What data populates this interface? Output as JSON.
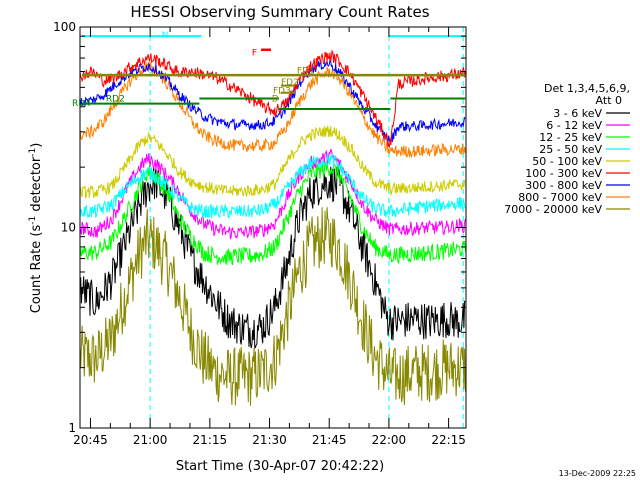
{
  "chart_data": {
    "type": "line",
    "title": "HESSI Observing Summary Count Rates",
    "xlabel": "Start Time (30-Apr-07 20:42:22)",
    "ylabel_main": "Count Rate (s",
    "ylabel_sup1": "-1",
    "ylabel_mid": " detector",
    "ylabel_sup2": "-1",
    "ylabel_end": ")",
    "yscale": "log",
    "ylim": [
      1,
      100
    ],
    "y_ticks": [
      {
        "value": 1,
        "label": "1"
      },
      {
        "value": 10,
        "label": "10"
      },
      {
        "value": 100,
        "label": "100"
      }
    ],
    "xlim_minutes": [
      0,
      97
    ],
    "x_ticks": [
      {
        "minutes": 2.63,
        "label": "20:45"
      },
      {
        "minutes": 17.63,
        "label": "21:00"
      },
      {
        "minutes": 32.63,
        "label": "21:15"
      },
      {
        "minutes": 47.63,
        "label": "21:30"
      },
      {
        "minutes": 62.63,
        "label": "21:45"
      },
      {
        "minutes": 77.63,
        "label": "22:00"
      },
      {
        "minutes": 92.63,
        "label": "22:15"
      }
    ],
    "legend": {
      "header1": "Det 1,3,4,5,6,9,",
      "header2": "Att 0",
      "placement": "right"
    },
    "series": [
      {
        "name": "3 - 6 keV",
        "color": "#000000",
        "x": [
          0,
          4,
          8,
          12,
          15,
          17,
          19,
          22,
          25,
          28,
          31,
          34,
          37,
          40,
          43,
          46,
          49,
          52,
          55,
          58,
          61,
          63,
          65,
          68,
          71,
          74,
          77,
          78,
          80,
          84,
          88,
          92,
          95,
          97
        ],
        "y": [
          5,
          4.2,
          5.5,
          9,
          13,
          16,
          17,
          14,
          10,
          7,
          5.5,
          4.3,
          3.5,
          3.2,
          3.1,
          3.2,
          4,
          6.5,
          11,
          15,
          16.5,
          17,
          16,
          12,
          8,
          5.5,
          3.6,
          3.4,
          3.4,
          3.5,
          3.4,
          3.5,
          3.4,
          3.5
        ]
      },
      {
        "name": "6 - 12 keV",
        "color": "#ff00ff",
        "x": [
          0,
          4,
          8,
          12,
          15,
          17,
          19,
          22,
          25,
          28,
          31,
          34,
          37,
          40,
          43,
          46,
          49,
          52,
          55,
          58,
          61,
          63,
          65,
          68,
          71,
          74,
          77,
          78,
          80,
          84,
          88,
          92,
          95,
          97
        ],
        "y": [
          10,
          9.5,
          11,
          16,
          20,
          22,
          21,
          18,
          15,
          12,
          10.5,
          9.8,
          9.5,
          9.4,
          9.5,
          9.7,
          10.5,
          14,
          18,
          21,
          22,
          23,
          21,
          17,
          13,
          11,
          10,
          9.8,
          9.8,
          9.9,
          10,
          10,
          10.2,
          10.2
        ]
      },
      {
        "name": "12 - 25 keV",
        "color": "#00ff00",
        "x": [
          0,
          4,
          8,
          12,
          15,
          17,
          19,
          22,
          25,
          28,
          31,
          34,
          37,
          40,
          43,
          46,
          49,
          52,
          55,
          58,
          61,
          63,
          65,
          68,
          71,
          74,
          77,
          78,
          80,
          84,
          88,
          92,
          95,
          97
        ],
        "y": [
          7.5,
          7.5,
          8.5,
          12,
          16,
          19,
          18,
          15,
          11,
          9,
          7.5,
          7.2,
          7.1,
          7.2,
          7.2,
          7.4,
          8,
          11,
          15,
          18.5,
          19.5,
          20,
          18.5,
          14,
          10,
          8,
          7.4,
          7.3,
          7.3,
          7.4,
          7.5,
          7.6,
          7.8,
          7.8
        ]
      },
      {
        "name": "25 - 50 keV",
        "color": "#00ffff",
        "x": [
          0,
          4,
          8,
          12,
          15,
          17,
          19,
          22,
          25,
          28,
          31,
          34,
          37,
          40,
          43,
          46,
          49,
          52,
          55,
          58,
          61,
          63,
          65,
          68,
          71,
          74,
          77,
          78,
          80,
          84,
          88,
          92,
          95,
          97
        ],
        "y": [
          12,
          12,
          13,
          16,
          18,
          19,
          18,
          16,
          14,
          12.5,
          12,
          12,
          12,
          12,
          12,
          12.2,
          13,
          15.5,
          18.5,
          21,
          21.5,
          22,
          20.5,
          17,
          14,
          12.5,
          12,
          12,
          12.2,
          12.5,
          12.8,
          13,
          13.2,
          13.2
        ]
      },
      {
        "name": "50 - 100 keV",
        "color": "#cccc00",
        "x": [
          0,
          4,
          8,
          12,
          15,
          17,
          19,
          22,
          25,
          28,
          31,
          34,
          37,
          40,
          43,
          46,
          49,
          52,
          55,
          58,
          61,
          63,
          65,
          68,
          71,
          74,
          77,
          78,
          80,
          84,
          88,
          92,
          95,
          97
        ],
        "y": [
          15,
          15,
          16,
          21,
          26,
          28,
          27,
          23,
          19,
          17,
          16,
          15.5,
          15.2,
          15.2,
          15.3,
          15.5,
          16.5,
          21,
          26,
          29,
          30,
          30.5,
          29,
          25,
          20,
          17,
          15.8,
          15.6,
          15.6,
          15.8,
          16,
          16.2,
          16.4,
          16.5
        ]
      },
      {
        "name": "100 - 300 keV",
        "color": "#ff0000",
        "x": [
          0,
          3,
          6,
          9,
          12,
          15,
          17,
          19,
          22,
          25,
          28,
          31,
          34,
          37,
          40,
          43,
          46,
          49,
          52,
          55,
          58,
          61,
          63,
          65,
          68,
          71,
          74,
          77,
          78,
          80,
          84,
          88,
          92,
          95,
          97
        ],
        "y": [
          57,
          60,
          54,
          56,
          62,
          67,
          70,
          69,
          64,
          59,
          60,
          58,
          56,
          52,
          48,
          44,
          40,
          38,
          42,
          54,
          64,
          70,
          72,
          68,
          58,
          46,
          36,
          28,
          26,
          52,
          54,
          56,
          57,
          58,
          60
        ]
      },
      {
        "name": "300 - 800 keV",
        "color": "#0000ff",
        "x": [
          0,
          3,
          6,
          9,
          12,
          15,
          17,
          19,
          22,
          25,
          28,
          31,
          34,
          37,
          40,
          43,
          46,
          49,
          52,
          55,
          58,
          61,
          63,
          65,
          68,
          71,
          74,
          77,
          78,
          80,
          84,
          88,
          92,
          95,
          97
        ],
        "y": [
          42,
          43,
          46,
          52,
          58,
          62,
          64,
          62,
          54,
          46,
          40,
          36,
          34,
          33,
          32.5,
          32.5,
          32.5,
          34,
          40,
          52,
          62,
          65,
          66,
          60,
          50,
          40,
          33,
          28,
          27,
          32,
          32,
          32.5,
          33,
          33.5,
          34
        ]
      },
      {
        "name": "800 - 7000 keV",
        "color": "#ff8000",
        "x": [
          0,
          3,
          6,
          9,
          12,
          15,
          17,
          19,
          22,
          25,
          28,
          31,
          34,
          37,
          40,
          43,
          46,
          49,
          52,
          55,
          58,
          61,
          63,
          65,
          68,
          71,
          74,
          77,
          78,
          80,
          84,
          88,
          92,
          95,
          97
        ],
        "y": [
          29,
          30,
          34,
          42,
          52,
          60,
          63,
          61,
          52,
          42,
          34,
          29,
          27,
          26,
          25.5,
          25.5,
          25.5,
          26.5,
          32,
          42,
          52,
          58,
          60,
          56,
          46,
          36,
          29,
          25,
          24,
          24,
          24,
          24.2,
          24.5,
          24.5,
          24.8
        ]
      },
      {
        "name": "7000 - 20000 keV",
        "color": "#888800",
        "x": [
          0,
          4,
          8,
          12,
          15,
          17,
          19,
          22,
          25,
          28,
          31,
          34,
          37,
          40,
          43,
          46,
          49,
          52,
          55,
          58,
          61,
          63,
          65,
          68,
          71,
          74,
          77,
          78,
          80,
          84,
          88,
          92,
          95,
          97
        ],
        "y": [
          2.3,
          2.2,
          2.8,
          5,
          7.5,
          8.8,
          8.2,
          6.5,
          4.5,
          3,
          2.2,
          1.9,
          1.8,
          1.8,
          1.8,
          1.9,
          2.2,
          3.6,
          6,
          8,
          9,
          9,
          8,
          5.5,
          3.4,
          2.3,
          1.9,
          1.8,
          1.8,
          1.9,
          1.9,
          2,
          2,
          2
        ]
      }
    ],
    "annotations": {
      "f_label": "F",
      "fd1_label": "FD1",
      "fd2_label": "FD2",
      "fd3_label": "FD3",
      "d_label": "D",
      "rd4_label": "RD4",
      "rd2_label": "RD2",
      "n_label": "N",
      "colors": {
        "F": "#ff0000",
        "FD": "#888800",
        "RD": "#008000",
        "N": "#00ffff"
      }
    }
  },
  "footer": {
    "timestamp": "13-Dec-2009 22:25"
  }
}
